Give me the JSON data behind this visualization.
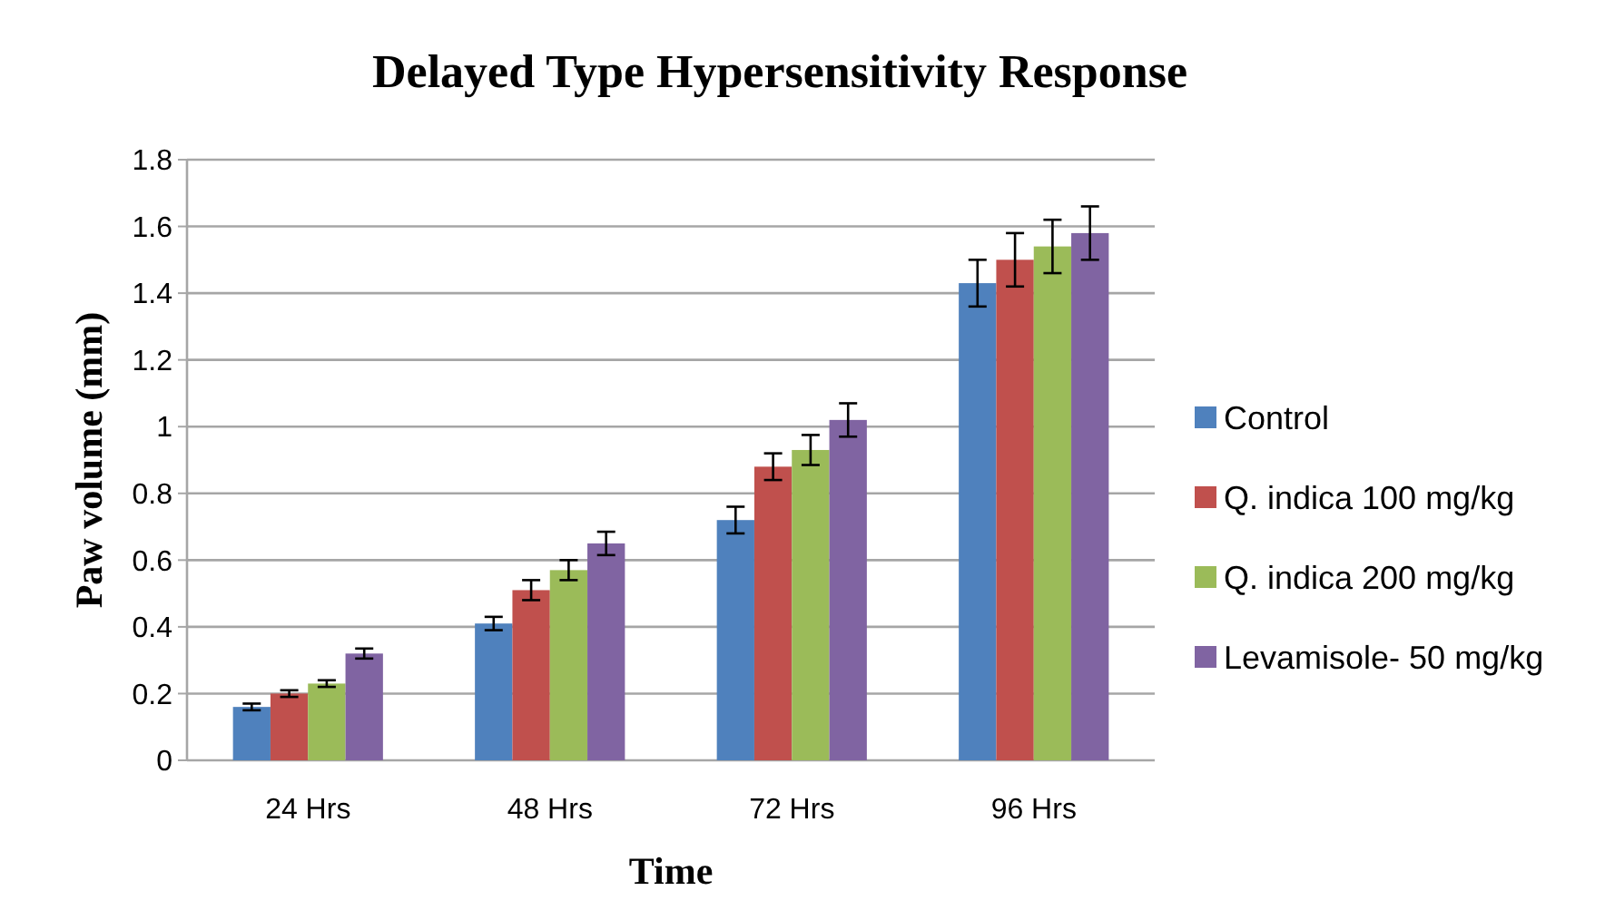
{
  "chart_data": {
    "type": "bar",
    "title": "Delayed Type Hypersensitivity Response",
    "xlabel": "Time",
    "ylabel": "Paw volume (mm)",
    "categories": [
      "24 Hrs",
      "48 Hrs",
      "72 Hrs",
      "96 Hrs"
    ],
    "series": [
      {
        "name": "Control",
        "color": "#4f81bd",
        "values": [
          0.16,
          0.41,
          0.72,
          1.43
        ],
        "errors": [
          0.01,
          0.02,
          0.04,
          0.07
        ]
      },
      {
        "name": "Q. indica 100 mg/kg",
        "color": "#c0504d",
        "values": [
          0.2,
          0.51,
          0.88,
          1.5
        ],
        "errors": [
          0.01,
          0.03,
          0.04,
          0.08
        ]
      },
      {
        "name": "Q. indica 200 mg/kg",
        "color": "#9bbb59",
        "values": [
          0.23,
          0.57,
          0.93,
          1.54
        ],
        "errors": [
          0.01,
          0.03,
          0.045,
          0.08
        ]
      },
      {
        "name": "Levamisole- 50 mg/kg",
        "color": "#8064a2",
        "values": [
          0.32,
          0.65,
          1.02,
          1.58
        ],
        "errors": [
          0.015,
          0.035,
          0.05,
          0.08
        ]
      }
    ],
    "ylim": [
      0,
      1.8
    ],
    "yticks": [
      0,
      0.2,
      0.4,
      0.6,
      0.8,
      1,
      1.2,
      1.4,
      1.6,
      1.8
    ],
    "grid": "y",
    "legend": "right"
  }
}
